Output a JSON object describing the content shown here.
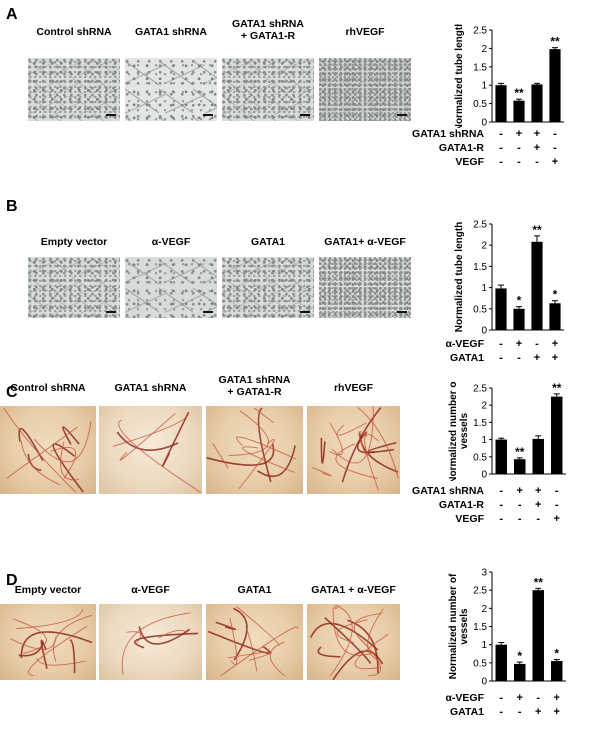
{
  "panels": [
    {
      "id": "A",
      "label": "A",
      "image_type": "micrograph",
      "images": [
        {
          "label": "Control shRNA"
        },
        {
          "label": "GATA1 shRNA"
        },
        {
          "label": "GATA1 shRNA\n+ GATA1-R"
        },
        {
          "label": "rhVEGF"
        }
      ],
      "chart_data": {
        "type": "bar",
        "ylabel": "Normalized tube length",
        "ylim": [
          0,
          2.5
        ],
        "yticks": [
          "0",
          "0.5",
          "1",
          "1.5",
          "2",
          "2.5"
        ],
        "values": [
          1.0,
          0.58,
          1.02,
          1.98
        ],
        "errors": [
          0.05,
          0.04,
          0.03,
          0.04
        ],
        "significance": [
          "",
          "**",
          "",
          "**"
        ],
        "conditions": [
          {
            "name": "GATA1 shRNA",
            "signs": [
              "-",
              "+",
              "+",
              "-"
            ]
          },
          {
            "name": "GATA1-R",
            "signs": [
              "-",
              "-",
              "+",
              "-"
            ]
          },
          {
            "name": "VEGF",
            "signs": [
              "-",
              "-",
              "-",
              "+"
            ]
          }
        ]
      }
    },
    {
      "id": "B",
      "label": "B",
      "image_type": "micrograph",
      "images": [
        {
          "label": "Empty vector"
        },
        {
          "label": "α-VEGF"
        },
        {
          "label": "GATA1"
        },
        {
          "label": "GATA1+ α-VEGF"
        }
      ],
      "chart_data": {
        "type": "bar",
        "ylabel": "Normalized tube length",
        "ylim": [
          0,
          2.5
        ],
        "yticks": [
          "0",
          "0.5",
          "1",
          "1.5",
          "2",
          "2.5"
        ],
        "values": [
          0.98,
          0.5,
          2.08,
          0.63
        ],
        "errors": [
          0.08,
          0.05,
          0.14,
          0.06
        ],
        "significance": [
          "",
          "*",
          "**",
          "*"
        ],
        "conditions": [
          {
            "name": "α-VEGF",
            "signs": [
              "-",
              "+",
              "-",
              "+"
            ]
          },
          {
            "name": "GATA1",
            "signs": [
              "-",
              "-",
              "+",
              "+"
            ]
          }
        ]
      }
    },
    {
      "id": "C",
      "label": "C",
      "image_type": "cam",
      "images": [
        {
          "label": "Control shRNA"
        },
        {
          "label": "GATA1 shRNA"
        },
        {
          "label": "GATA1 shRNA\n+ GATA1-R"
        },
        {
          "label": "rhVEGF"
        }
      ],
      "chart_data": {
        "type": "bar",
        "ylabel": "Normalized number of\nvessels",
        "ylim": [
          0,
          2.5
        ],
        "yticks": [
          "0",
          "0.5",
          "1",
          "1.5",
          "2",
          "2.5"
        ],
        "values": [
          1.0,
          0.43,
          1.02,
          2.25
        ],
        "errors": [
          0.04,
          0.04,
          0.09,
          0.08
        ],
        "significance": [
          "",
          "**",
          "",
          "**"
        ],
        "conditions": [
          {
            "name": "GATA1 shRNA",
            "signs": [
              "-",
              "+",
              "+",
              "-"
            ]
          },
          {
            "name": "GATA1-R",
            "signs": [
              "-",
              "-",
              "+",
              "-"
            ]
          },
          {
            "name": "VEGF",
            "signs": [
              "-",
              "-",
              "-",
              "+"
            ]
          }
        ]
      }
    },
    {
      "id": "D",
      "label": "D",
      "image_type": "cam",
      "images": [
        {
          "label": "Empty vector"
        },
        {
          "label": "α-VEGF"
        },
        {
          "label": "GATA1"
        },
        {
          "label": "GATA1 + α-VEGF"
        }
      ],
      "chart_data": {
        "type": "bar",
        "ylabel": "Normalized number of\nvessels",
        "ylim": [
          0,
          3
        ],
        "yticks": [
          "0",
          "0.5",
          "1",
          "1.5",
          "2",
          "2.5",
          "3"
        ],
        "values": [
          1.0,
          0.47,
          2.5,
          0.55
        ],
        "errors": [
          0.06,
          0.05,
          0.05,
          0.04
        ],
        "significance": [
          "",
          "*",
          "**",
          "*"
        ],
        "conditions": [
          {
            "name": "α-VEGF",
            "signs": [
              "-",
              "+",
              "-",
              "+"
            ]
          },
          {
            "name": "GATA1",
            "signs": [
              "-",
              "-",
              "+",
              "+"
            ]
          }
        ]
      }
    }
  ]
}
